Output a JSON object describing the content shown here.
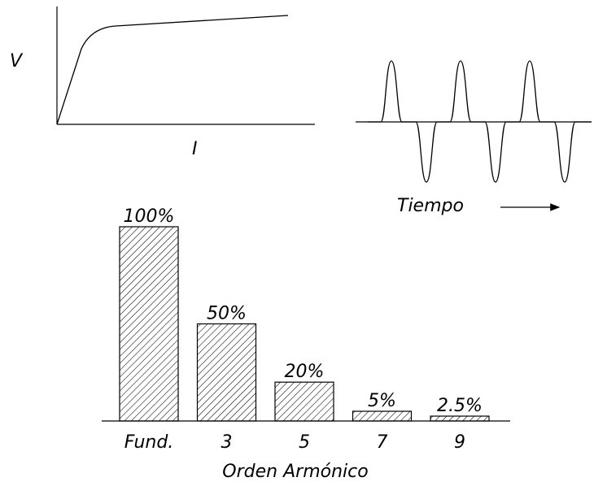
{
  "vi_curve": {
    "y_label": "V",
    "x_label": "I"
  },
  "waveform": {
    "x_label": "Tiempo"
  },
  "chart_data": {
    "type": "bar",
    "categories": [
      "Fund.",
      "3",
      "5",
      "7",
      "9"
    ],
    "values": [
      100,
      50,
      20,
      5,
      2.5
    ],
    "value_labels": [
      "100%",
      "50%",
      "20%",
      "5%",
      "2.5%"
    ],
    "xlabel": "Orden Armónico",
    "ylabel": "",
    "ylim": [
      0,
      100
    ],
    "grid": false,
    "fill": "hatched"
  }
}
